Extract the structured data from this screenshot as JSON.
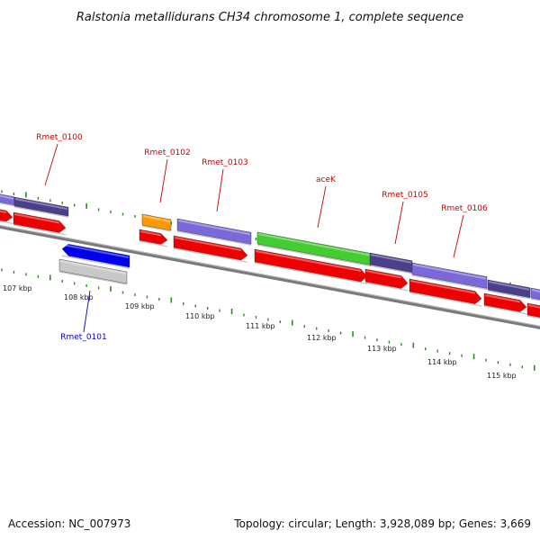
{
  "title": "Ralstonia metallidurans CH34 chromosome 1, complete sequence",
  "footer": {
    "accession": "Accession: NC_007973",
    "topology": "Topology: circular; Length: 3,928,089 bp; Genes: 3,669"
  },
  "colors": {
    "forward_cds": "#7b68d9",
    "forward_dark": "#4a3f8a",
    "reverse_cds": "#ee0000",
    "highlight_blue": "#0000ee",
    "acek_green": "#44cc33",
    "orange": "#ff9900",
    "gray_feature": "#c8c8c8",
    "tick_green": "#2e8b22",
    "label_red": "#cc0000",
    "label_blue": "#0000cc"
  },
  "scale_labels": [
    "107 kbp",
    "108 kbp",
    "109 kbp",
    "110 kbp",
    "111 kbp",
    "112 kbp",
    "113 kbp",
    "114 kbp",
    "115 kbp"
  ],
  "gene_labels": [
    {
      "text": "Rmet_0100",
      "color": "red"
    },
    {
      "text": "Rmet_0102",
      "color": "red"
    },
    {
      "text": "Rmet_0103",
      "color": "red"
    },
    {
      "text": "aceK",
      "color": "red"
    },
    {
      "text": "Rmet_0105",
      "color": "red"
    },
    {
      "text": "Rmet_0106",
      "color": "red"
    },
    {
      "text": "Rmet_0101",
      "color": "blue"
    }
  ]
}
